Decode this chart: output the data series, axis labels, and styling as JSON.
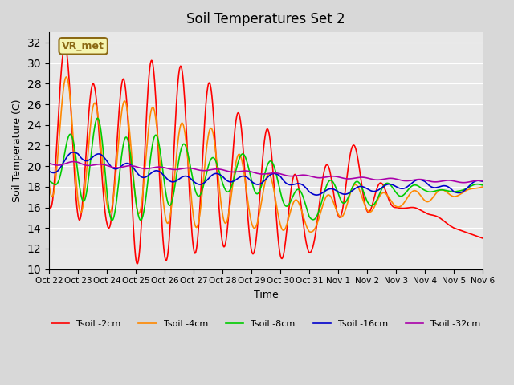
{
  "title": "Soil Temperatures Set 2",
  "xlabel": "Time",
  "ylabel": "Soil Temperature (C)",
  "ylim": [
    10,
    33
  ],
  "yticks": [
    10,
    12,
    14,
    16,
    18,
    20,
    22,
    24,
    26,
    28,
    30,
    32
  ],
  "bg_color": "#e8e8e8",
  "plot_bg": "#f0f0f0",
  "annotation_text": "VR_met",
  "annotation_color": "#8B6914",
  "annotation_bg": "#f5f5b0",
  "legend_labels": [
    "Tsoil -2cm",
    "Tsoil -4cm",
    "Tsoil -8cm",
    "Tsoil -16cm",
    "Tsoil -32cm"
  ],
  "line_colors": [
    "#ff0000",
    "#ff8800",
    "#00cc00",
    "#0000cc",
    "#aa00aa"
  ],
  "xtick_labels": [
    "Oct 22",
    "Oct 23",
    "Oct 24",
    "Oct 25",
    "Oct 26",
    "Oct 27",
    "Oct 28",
    "Oct 29",
    "Oct 30",
    "Oct 31",
    "Nov 1",
    "Nov 2",
    "Nov 3",
    "Nov 4",
    "Nov 5",
    "Nov 6"
  ],
  "n_days": 15,
  "points_per_day": 48
}
